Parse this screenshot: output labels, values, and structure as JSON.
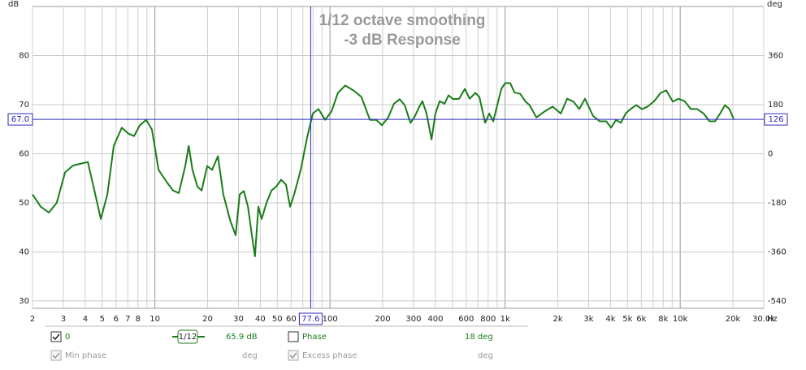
{
  "chart_data": {
    "type": "line",
    "title": "1/12 octave smoothing",
    "subtitle": "-3 dB Response",
    "y_label": "dB",
    "y2_label": "deg",
    "x_label": "Hz",
    "log_x": true,
    "grid": true,
    "xlim": [
      2,
      30000
    ],
    "ylim": [
      28.5,
      90
    ],
    "y2lim": [
      -567,
      540
    ],
    "xticks": [
      2,
      3,
      4,
      5,
      6,
      7,
      8,
      10,
      20,
      30,
      40,
      50,
      60,
      100,
      200,
      300,
      400,
      600,
      800,
      {
        "value": 1000,
        "label": "1k"
      },
      {
        "value": 2000,
        "label": "2k"
      },
      {
        "value": 3000,
        "label": "3k"
      },
      {
        "value": 4000,
        "label": "4k"
      },
      {
        "value": 5000,
        "label": "5k"
      },
      {
        "value": 6000,
        "label": "6k"
      },
      {
        "value": 8000,
        "label": "8k"
      },
      {
        "value": 10000,
        "label": "10k"
      },
      {
        "value": 20000,
        "label": "20k"
      },
      {
        "value": 30000,
        "label": "30.0k"
      }
    ],
    "xminor": [
      9,
      70,
      80,
      90,
      500,
      700,
      900,
      7000,
      9000
    ],
    "yticks": [
      30,
      40,
      50,
      60,
      70,
      80
    ],
    "y2ticks": [
      -540,
      -360,
      -180,
      0,
      180,
      360
    ],
    "cursor": {
      "x": 77.6,
      "y": {
        "value": 67,
        "label": "67.0"
      },
      "y2": 126
    },
    "series": [
      {
        "name": "0",
        "color": "#1a7d1a",
        "x": [
          2,
          2.23,
          2.48,
          2.75,
          3.07,
          3.41,
          3.79,
          4.14,
          4.46,
          4.91,
          5.35,
          5.82,
          6.47,
          7.06,
          7.6,
          8.2,
          8.93,
          9.62,
          10.5,
          11.7,
          12.7,
          13.7,
          14.9,
          15.6,
          16.4,
          17.5,
          18.5,
          19.9,
          21.2,
          22.9,
          24.6,
          26.9,
          28.9,
          30.5,
          32.2,
          34,
          35.8,
          37.3,
          39,
          40.7,
          43.4,
          46.3,
          49.3,
          52.6,
          56.1,
          59.2,
          62.4,
          68,
          74,
          79.8,
          86,
          93.8,
          102,
          111,
          122,
          136,
          151,
          169,
          184,
          198,
          215,
          232,
          250,
          267,
          288,
          303,
          324,
          337,
          356,
          380,
          400,
          423,
          451,
          475,
          507,
          546,
          589,
          628,
          676,
          713,
          769,
          811,
          856,
          902,
          951,
          1000,
          1070,
          1130,
          1220,
          1310,
          1380,
          1510,
          1680,
          1870,
          2080,
          2260,
          2460,
          2650,
          2860,
          3180,
          3470,
          3780,
          4030,
          4300,
          4580,
          4880,
          5200,
          5610,
          6040,
          6520,
          7100,
          7730,
          8320,
          9080,
          9770,
          10600,
          11500,
          12500,
          13600,
          14700,
          15800,
          16900,
          18000,
          19100,
          20200
        ],
        "values": [
          51.7,
          49.2,
          48,
          50,
          56.2,
          57.6,
          58,
          58.3,
          53.3,
          46.7,
          51.7,
          61.6,
          65.3,
          64.1,
          63.6,
          65.8,
          66.9,
          64.9,
          56.7,
          54.2,
          52.5,
          52,
          57.5,
          61.6,
          56.7,
          53.3,
          52.5,
          57.5,
          56.7,
          59.5,
          51.7,
          46.4,
          43.4,
          51.7,
          52.4,
          49.2,
          43.4,
          39.1,
          49.2,
          46.7,
          50,
          52.5,
          53.3,
          54.7,
          53.7,
          49.2,
          51.7,
          56.7,
          63.3,
          68.2,
          69.1,
          66.9,
          68.6,
          72.4,
          73.9,
          72.9,
          71.6,
          66.9,
          66.9,
          65.8,
          67.4,
          70.2,
          71.1,
          69.9,
          66.3,
          67.4,
          69.6,
          70.7,
          68.2,
          62.9,
          68.2,
          70.7,
          70.2,
          71.9,
          71.1,
          71.2,
          73.2,
          71.2,
          72.4,
          71.6,
          66.3,
          68.2,
          66.6,
          69.9,
          73.2,
          74.4,
          74.4,
          72.5,
          72.2,
          70.6,
          69.9,
          67.4,
          68.6,
          69.6,
          68.2,
          71.2,
          70.6,
          69.1,
          71.2,
          67.7,
          66.6,
          66.6,
          65.3,
          66.9,
          66.3,
          68.2,
          69.1,
          69.9,
          69.1,
          69.6,
          70.7,
          72.4,
          72.9,
          70.6,
          71.2,
          70.7,
          69.1,
          69.1,
          68.2,
          66.6,
          66.6,
          68.2,
          69.9,
          69.1,
          67.1
        ]
      }
    ]
  },
  "panel": {
    "row1": {
      "smoothing": "1/12",
      "spl": "65.9 dB",
      "phase": "Phase",
      "phase_value": "18 deg"
    },
    "row2": {
      "min_phase": "Min phase",
      "min_phase_unit": "deg",
      "excess_phase": "Excess phase",
      "excess_phase_unit": "deg"
    }
  }
}
